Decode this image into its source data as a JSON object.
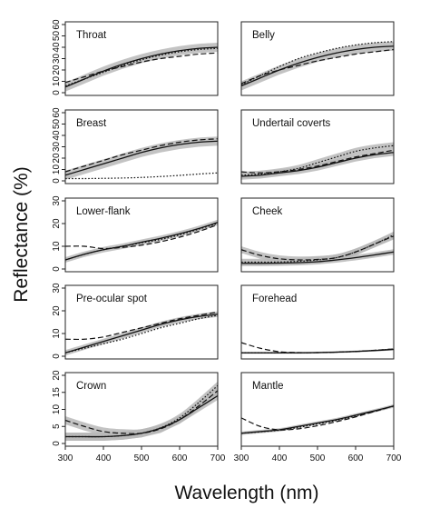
{
  "figure": {
    "xlabel": "Wavelength (nm)",
    "ylabel": "Reflectance (%)"
  },
  "chart_data": [
    {
      "type": "line",
      "title": "Throat",
      "xlim": [
        300,
        700
      ],
      "ylim": [
        0,
        60
      ],
      "yticks": [
        0,
        10,
        20,
        30,
        40,
        50,
        60
      ],
      "xticks": [
        300,
        400,
        500,
        600,
        700
      ],
      "x": [
        300,
        350,
        400,
        450,
        500,
        550,
        600,
        650,
        700
      ],
      "series": [
        {
          "style": "solid",
          "values": [
            5,
            12,
            19,
            25,
            30,
            34,
            37,
            39,
            40
          ],
          "band": 4
        },
        {
          "style": "dashed",
          "values": [
            9,
            14,
            19,
            23,
            27,
            30,
            32,
            34,
            35
          ],
          "band": 0
        },
        {
          "style": "dotted",
          "values": [
            6,
            12,
            18,
            24,
            29,
            33,
            36,
            38,
            39
          ],
          "band": 0
        }
      ]
    },
    {
      "type": "line",
      "title": "Belly",
      "xlim": [
        300,
        700
      ],
      "ylim": [
        0,
        60
      ],
      "yticks": [
        0,
        10,
        20,
        30,
        40,
        50,
        60
      ],
      "xticks": [
        300,
        400,
        500,
        600,
        700
      ],
      "x": [
        300,
        350,
        400,
        450,
        500,
        550,
        600,
        650,
        700
      ],
      "series": [
        {
          "style": "solid",
          "values": [
            6,
            13,
            20,
            26,
            31,
            35,
            38,
            40,
            41
          ],
          "band": 4
        },
        {
          "style": "dashed",
          "values": [
            8,
            15,
            20,
            24,
            28,
            31,
            34,
            36,
            38
          ],
          "band": 0
        },
        {
          "style": "dotted",
          "values": [
            7,
            15,
            23,
            30,
            35,
            39,
            42,
            44,
            45
          ],
          "band": 0
        }
      ]
    },
    {
      "type": "line",
      "title": "Breast",
      "xlim": [
        300,
        700
      ],
      "ylim": [
        0,
        60
      ],
      "yticks": [
        0,
        10,
        20,
        30,
        40,
        50,
        60
      ],
      "xticks": [
        300,
        400,
        500,
        600,
        700
      ],
      "x": [
        300,
        350,
        400,
        450,
        500,
        550,
        600,
        650,
        700
      ],
      "series": [
        {
          "style": "solid",
          "values": [
            5,
            10,
            15,
            20,
            25,
            29,
            32,
            34,
            35
          ],
          "band": 4
        },
        {
          "style": "dashed",
          "values": [
            8,
            13,
            18,
            23,
            27,
            31,
            34,
            36,
            37
          ],
          "band": 0
        },
        {
          "style": "dotted",
          "values": [
            2,
            2,
            2.2,
            2.5,
            3,
            3.8,
            4.8,
            6,
            7
          ],
          "band": 0
        }
      ]
    },
    {
      "type": "line",
      "title": "Undertail coverts",
      "xlim": [
        300,
        700
      ],
      "ylim": [
        0,
        60
      ],
      "yticks": [
        0,
        10,
        20,
        30,
        40,
        50,
        60
      ],
      "xticks": [
        300,
        400,
        500,
        600,
        700
      ],
      "x": [
        300,
        350,
        400,
        450,
        500,
        550,
        600,
        650,
        700
      ],
      "series": [
        {
          "style": "solid",
          "values": [
            4,
            5,
            7,
            9,
            12,
            16,
            20,
            23,
            25
          ],
          "band": 3
        },
        {
          "style": "dashed",
          "values": [
            8,
            7,
            8,
            10,
            13,
            17,
            21,
            24,
            27
          ],
          "band": 0
        },
        {
          "style": "dotted",
          "values": [
            5,
            6,
            8,
            11,
            16,
            21,
            26,
            29,
            31
          ],
          "band": 3
        }
      ]
    },
    {
      "type": "line",
      "title": "Lower-flank",
      "xlim": [
        300,
        700
      ],
      "ylim": [
        0,
        30
      ],
      "yticks": [
        0,
        10,
        20,
        30
      ],
      "xticks": [
        300,
        400,
        500,
        600,
        700
      ],
      "x": [
        300,
        350,
        400,
        450,
        500,
        550,
        600,
        650,
        700
      ],
      "series": [
        {
          "style": "solid",
          "values": [
            4,
            6.5,
            8.5,
            10,
            11.8,
            13.5,
            15.5,
            17.8,
            20.5
          ],
          "band": 1.2
        },
        {
          "style": "dashed",
          "values": [
            10,
            10,
            9,
            9.5,
            10.5,
            12,
            14,
            16.5,
            19.5
          ],
          "band": 0
        },
        {
          "style": "dotted",
          "values": [
            4,
            6.5,
            8.5,
            10,
            11.5,
            13,
            15,
            17.5,
            20
          ],
          "band": 0
        }
      ]
    },
    {
      "type": "line",
      "title": "Cheek",
      "xlim": [
        300,
        700
      ],
      "ylim": [
        0,
        30
      ],
      "yticks": [
        0,
        10,
        20,
        30
      ],
      "xticks": [
        300,
        400,
        500,
        600,
        700
      ],
      "x": [
        300,
        350,
        400,
        450,
        500,
        550,
        600,
        650,
        700
      ],
      "series": [
        {
          "style": "solid",
          "values": [
            2.5,
            2.5,
            2.6,
            2.8,
            3.2,
            4,
            5,
            6.2,
            7.5
          ],
          "band": 1.2
        },
        {
          "style": "dashed",
          "values": [
            8.5,
            6,
            4.5,
            4,
            4.2,
            5,
            7.5,
            11,
            14.5
          ],
          "band": 1.5
        },
        {
          "style": "dotted",
          "values": [
            3,
            3,
            3.1,
            3.4,
            4,
            5,
            7.5,
            11,
            15
          ],
          "band": 1.5
        }
      ]
    },
    {
      "type": "line",
      "title": "Pre-ocular spot",
      "xlim": [
        300,
        700
      ],
      "ylim": [
        0,
        30
      ],
      "yticks": [
        0,
        10,
        20,
        30
      ],
      "xticks": [
        300,
        400,
        500,
        600,
        700
      ],
      "x": [
        300,
        350,
        400,
        450,
        500,
        550,
        600,
        650,
        700
      ],
      "series": [
        {
          "style": "solid",
          "values": [
            1.5,
            4,
            6.5,
            9,
            11.5,
            14,
            16,
            17.5,
            18.5
          ],
          "band": 1.2
        },
        {
          "style": "dashed",
          "values": [
            7.5,
            7.5,
            8.5,
            10.5,
            12.5,
            14.5,
            16.5,
            18,
            19.5
          ],
          "band": 0
        },
        {
          "style": "dotted",
          "values": [
            1.5,
            3.5,
            5.5,
            7.5,
            10,
            12.5,
            14.5,
            16.5,
            18
          ],
          "band": 0
        }
      ]
    },
    {
      "type": "line",
      "title": "Forehead",
      "xlim": [
        300,
        700
      ],
      "ylim": [
        0,
        30
      ],
      "yticks": [
        0,
        10,
        20,
        30
      ],
      "xticks": [
        300,
        400,
        500,
        600,
        700
      ],
      "x": [
        300,
        350,
        400,
        450,
        500,
        550,
        600,
        650,
        700
      ],
      "series": [
        {
          "style": "solid",
          "values": [
            1.5,
            1.5,
            1.5,
            1.5,
            1.6,
            1.8,
            2.1,
            2.5,
            3
          ],
          "band": 0.4
        },
        {
          "style": "dashed",
          "values": [
            6,
            3.5,
            2,
            1.6,
            1.6,
            1.8,
            2.1,
            2.6,
            3.2
          ],
          "band": 0
        },
        {
          "style": "dotted",
          "values": [
            1.5,
            1.5,
            1.5,
            1.5,
            1.6,
            1.8,
            2.1,
            2.6,
            3.2
          ],
          "band": 0
        }
      ]
    },
    {
      "type": "line",
      "title": "Crown",
      "xlim": [
        300,
        700
      ],
      "ylim": [
        0,
        20
      ],
      "yticks": [
        0,
        5,
        10,
        15,
        20
      ],
      "xticks": [
        300,
        400,
        500,
        600,
        700
      ],
      "x": [
        300,
        350,
        400,
        450,
        500,
        550,
        600,
        650,
        700
      ],
      "series": [
        {
          "style": "solid",
          "values": [
            2,
            2,
            2,
            2.3,
            3,
            4.5,
            7,
            10.5,
            14
          ],
          "band": 1.2
        },
        {
          "style": "dashed",
          "values": [
            6.8,
            5,
            3.5,
            3,
            3,
            4.3,
            7,
            11,
            15.5
          ],
          "band": 1.2
        },
        {
          "style": "dotted",
          "values": [
            2,
            2,
            2,
            2.3,
            3,
            4.6,
            7.5,
            12,
            17
          ],
          "band": 1.2
        }
      ]
    },
    {
      "type": "line",
      "title": "Mantle",
      "xlim": [
        300,
        700
      ],
      "ylim": [
        0,
        20
      ],
      "yticks": [
        0,
        5,
        10,
        15,
        20
      ],
      "xticks": [
        300,
        400,
        500,
        600,
        700
      ],
      "x": [
        300,
        350,
        400,
        450,
        500,
        550,
        600,
        650,
        700
      ],
      "series": [
        {
          "style": "solid",
          "values": [
            3,
            3.5,
            4,
            5,
            6,
            7,
            8.3,
            9.6,
            11
          ],
          "band": 0.5
        },
        {
          "style": "dashed",
          "values": [
            7.5,
            5,
            4,
            4.3,
            5.2,
            6.4,
            7.8,
            9.4,
            11
          ],
          "band": 0
        },
        {
          "style": "dotted",
          "values": [
            3,
            3.4,
            3.9,
            4.7,
            5.7,
            6.8,
            8.1,
            9.5,
            11
          ],
          "band": 0
        }
      ]
    }
  ]
}
